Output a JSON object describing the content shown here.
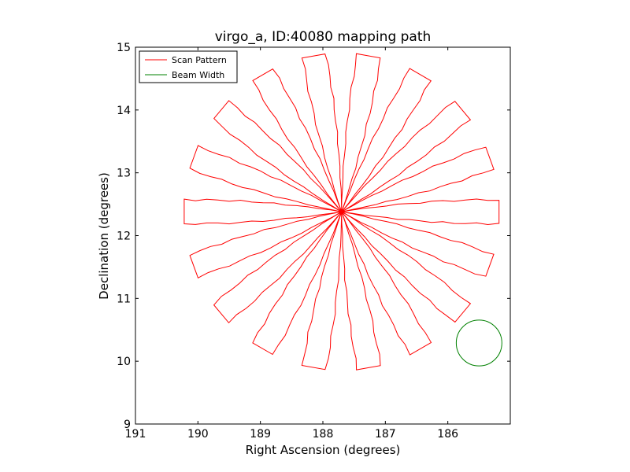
{
  "chart_data": {
    "type": "line",
    "title": "virgo_a, ID:40080 mapping path",
    "xlabel": "Right Ascension (degrees)",
    "ylabel": "Declination (degrees)",
    "xlim": [
      191.0,
      185.0
    ],
    "ylim": [
      9.0,
      15.0
    ],
    "xticks": [
      191,
      190,
      189,
      188,
      187,
      186
    ],
    "xtick_labels": [
      "191",
      "190",
      "189",
      "188",
      "187",
      "186"
    ],
    "yticks": [
      9,
      10,
      11,
      12,
      13,
      14,
      15
    ],
    "ytick_labels": [
      "9",
      "10",
      "11",
      "12",
      "13",
      "14",
      "15"
    ],
    "grid": false,
    "legend_position": "top-left",
    "series": [
      {
        "name": "Scan Pattern",
        "color": "#ff0000",
        "kind": "rosette",
        "center": [
          187.7,
          12.38
        ],
        "petals": 18,
        "petal_length": 2.52,
        "petal_half_width": 0.19,
        "start_angle_deg": 0
      },
      {
        "name": "Beam Width",
        "color": "#008000",
        "kind": "circle",
        "center": [
          185.5,
          10.29
        ],
        "radius": 0.365
      }
    ]
  }
}
